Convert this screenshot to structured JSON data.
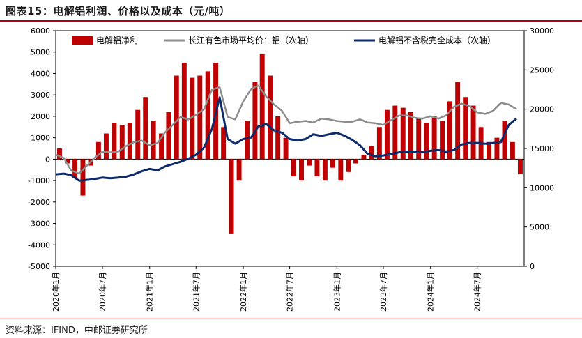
{
  "header": {
    "title": "图表15：电解铝利润、价格以及成本（元/吨）"
  },
  "footer": {
    "source": "资料来源：IFIND，中邮证券研究所"
  },
  "colors": {
    "profit": "#c00000",
    "price": "#8c8c8c",
    "cost": "#0d2a6b",
    "accent": "#b40000"
  },
  "chart_data": {
    "type": "bar",
    "title": "电解铝利润、价格以及成本（元/吨）",
    "legend": {
      "placement": "top",
      "items": [
        "电解铝净利",
        "长江有色市场平均价：铝（次轴）",
        "电解铝不含税完全成本（次轴）"
      ]
    },
    "x_tick_labels": [
      "2020年1月",
      "2020年7月",
      "2021年1月",
      "2021年7月",
      "2022年1月",
      "2022年7月",
      "2023年1月",
      "2023年7月",
      "2024年1月",
      "2024年7月"
    ],
    "left_axis": {
      "min": -5000,
      "max": 6000,
      "step": 1000,
      "ticks": [
        "6000",
        "5000",
        "4000",
        "3000",
        "2000",
        "1000",
        "0",
        "-1000",
        "-2000",
        "-3000",
        "-4000",
        "-5000"
      ]
    },
    "right_axis": {
      "min": 0,
      "max": 30000,
      "step": 5000,
      "ticks": [
        "30000",
        "25000",
        "20000",
        "15000",
        "10000",
        "5000",
        "0"
      ]
    },
    "series": [
      {
        "name": "电解铝净利",
        "type": "bar",
        "axis": "left",
        "points": [
          [
            "2020-01",
            500
          ],
          [
            "2020-02",
            -200
          ],
          [
            "2020-03",
            -900
          ],
          [
            "2020-04",
            -1700
          ],
          [
            "2020-05",
            -300
          ],
          [
            "2020-06",
            800
          ],
          [
            "2020-07",
            1200
          ],
          [
            "2020-08",
            1700
          ],
          [
            "2020-09",
            1600
          ],
          [
            "2020-10",
            1700
          ],
          [
            "2020-11",
            2300
          ],
          [
            "2020-12",
            2900
          ],
          [
            "2021-01",
            1800
          ],
          [
            "2021-02",
            1200
          ],
          [
            "2021-03",
            2200
          ],
          [
            "2021-04",
            3900
          ],
          [
            "2021-05",
            4500
          ],
          [
            "2021-06",
            3800
          ],
          [
            "2021-07",
            3900
          ],
          [
            "2021-08",
            4100
          ],
          [
            "2021-09",
            4500
          ],
          [
            "2021-10",
            1500
          ],
          [
            "2021-11",
            -3500
          ],
          [
            "2021-12",
            -1000
          ],
          [
            "2022-01",
            1800
          ],
          [
            "2022-02",
            3600
          ],
          [
            "2022-03",
            4900
          ],
          [
            "2022-04",
            3900
          ],
          [
            "2022-05",
            2000
          ],
          [
            "2022-06",
            1000
          ],
          [
            "2022-07",
            -800
          ],
          [
            "2022-08",
            -1000
          ],
          [
            "2022-09",
            -300
          ],
          [
            "2022-10",
            -800
          ],
          [
            "2022-11",
            -1000
          ],
          [
            "2022-12",
            -400
          ],
          [
            "2023-01",
            -1000
          ],
          [
            "2023-02",
            -600
          ],
          [
            "2023-03",
            -200
          ],
          [
            "2023-04",
            200
          ],
          [
            "2023-05",
            600
          ],
          [
            "2023-06",
            1500
          ],
          [
            "2023-07",
            2300
          ],
          [
            "2023-08",
            2500
          ],
          [
            "2023-09",
            2400
          ],
          [
            "2023-10",
            2200
          ],
          [
            "2023-11",
            1900
          ],
          [
            "2023-12",
            1700
          ],
          [
            "2024-01",
            2000
          ],
          [
            "2024-02",
            1800
          ],
          [
            "2024-03",
            2700
          ],
          [
            "2024-04",
            3600
          ],
          [
            "2024-05",
            2900
          ],
          [
            "2024-06",
            2500
          ],
          [
            "2024-07",
            1500
          ],
          [
            "2024-08",
            800
          ],
          [
            "2024-09",
            1000
          ],
          [
            "2024-10",
            1800
          ],
          [
            "2024-11",
            800
          ],
          [
            "2024-12",
            -700
          ]
        ]
      },
      {
        "name": "长江有色市场平均价：铝（次轴）",
        "type": "line",
        "axis": "right",
        "points": [
          [
            "2020-01",
            14200
          ],
          [
            "2020-02",
            13800
          ],
          [
            "2020-03",
            12200
          ],
          [
            "2020-04",
            11800
          ],
          [
            "2020-05",
            12800
          ],
          [
            "2020-06",
            13800
          ],
          [
            "2020-07",
            14600
          ],
          [
            "2020-08",
            14500
          ],
          [
            "2020-09",
            14600
          ],
          [
            "2020-10",
            15300
          ],
          [
            "2020-11",
            15800
          ],
          [
            "2020-12",
            16000
          ],
          [
            "2021-01",
            15400
          ],
          [
            "2021-02",
            15700
          ],
          [
            "2021-03",
            17000
          ],
          [
            "2021-04",
            18000
          ],
          [
            "2021-05",
            19000
          ],
          [
            "2021-06",
            18700
          ],
          [
            "2021-07",
            19300
          ],
          [
            "2021-08",
            20000
          ],
          [
            "2021-09",
            22500
          ],
          [
            "2021-10",
            22800
          ],
          [
            "2021-11",
            19000
          ],
          [
            "2021-12",
            18700
          ],
          [
            "2022-01",
            21000
          ],
          [
            "2022-02",
            22600
          ],
          [
            "2022-03",
            23000
          ],
          [
            "2022-04",
            21600
          ],
          [
            "2022-05",
            20600
          ],
          [
            "2022-06",
            19800
          ],
          [
            "2022-07",
            18200
          ],
          [
            "2022-08",
            18400
          ],
          [
            "2022-09",
            18500
          ],
          [
            "2022-10",
            18300
          ],
          [
            "2022-11",
            18800
          ],
          [
            "2022-12",
            18700
          ],
          [
            "2023-01",
            18500
          ],
          [
            "2023-02",
            18400
          ],
          [
            "2023-03",
            18400
          ],
          [
            "2023-04",
            18700
          ],
          [
            "2023-05",
            18300
          ],
          [
            "2023-06",
            18200
          ],
          [
            "2023-07",
            18000
          ],
          [
            "2023-08",
            18600
          ],
          [
            "2023-09",
            19200
          ],
          [
            "2023-10",
            19200
          ],
          [
            "2023-11",
            18900
          ],
          [
            "2023-12",
            18800
          ],
          [
            "2024-01",
            19100
          ],
          [
            "2024-02",
            18800
          ],
          [
            "2024-03",
            19200
          ],
          [
            "2024-04",
            20300
          ],
          [
            "2024-05",
            20700
          ],
          [
            "2024-06",
            20400
          ],
          [
            "2024-07",
            19600
          ],
          [
            "2024-08",
            19400
          ],
          [
            "2024-09",
            19800
          ],
          [
            "2024-10",
            20800
          ],
          [
            "2024-11",
            20600
          ],
          [
            "2024-12",
            20000
          ]
        ]
      },
      {
        "name": "电解铝不含税完全成本（次轴）",
        "type": "line",
        "axis": "right",
        "points": [
          [
            "2020-01",
            11700
          ],
          [
            "2020-02",
            11800
          ],
          [
            "2020-03",
            11600
          ],
          [
            "2020-04",
            10900
          ],
          [
            "2020-05",
            11000
          ],
          [
            "2020-06",
            11100
          ],
          [
            "2020-07",
            11300
          ],
          [
            "2020-08",
            11200
          ],
          [
            "2020-09",
            11300
          ],
          [
            "2020-10",
            11400
          ],
          [
            "2020-11",
            11700
          ],
          [
            "2020-12",
            12100
          ],
          [
            "2021-01",
            12400
          ],
          [
            "2021-02",
            12200
          ],
          [
            "2021-03",
            12700
          ],
          [
            "2021-04",
            13000
          ],
          [
            "2021-05",
            13300
          ],
          [
            "2021-06",
            13700
          ],
          [
            "2021-07",
            14200
          ],
          [
            "2021-08",
            15100
          ],
          [
            "2021-09",
            17500
          ],
          [
            "2021-10",
            21500
          ],
          [
            "2021-11",
            16200
          ],
          [
            "2021-12",
            15600
          ],
          [
            "2022-01",
            16200
          ],
          [
            "2022-02",
            16400
          ],
          [
            "2022-03",
            17800
          ],
          [
            "2022-04",
            18100
          ],
          [
            "2022-05",
            17300
          ],
          [
            "2022-06",
            17000
          ],
          [
            "2022-07",
            16200
          ],
          [
            "2022-08",
            16000
          ],
          [
            "2022-09",
            16200
          ],
          [
            "2022-10",
            16800
          ],
          [
            "2022-11",
            16600
          ],
          [
            "2022-12",
            16800
          ],
          [
            "2023-01",
            17000
          ],
          [
            "2023-02",
            16600
          ],
          [
            "2023-03",
            16100
          ],
          [
            "2023-04",
            15400
          ],
          [
            "2023-05",
            14300
          ],
          [
            "2023-06",
            14000
          ],
          [
            "2023-07",
            14100
          ],
          [
            "2023-08",
            14300
          ],
          [
            "2023-09",
            14500
          ],
          [
            "2023-10",
            14600
          ],
          [
            "2023-11",
            14600
          ],
          [
            "2023-12",
            14500
          ],
          [
            "2024-01",
            14700
          ],
          [
            "2024-02",
            14800
          ],
          [
            "2024-03",
            14600
          ],
          [
            "2024-04",
            14800
          ],
          [
            "2024-05",
            15500
          ],
          [
            "2024-06",
            15700
          ],
          [
            "2024-07",
            15700
          ],
          [
            "2024-08",
            15600
          ],
          [
            "2024-09",
            15700
          ],
          [
            "2024-10",
            15800
          ],
          [
            "2024-11",
            18000
          ],
          [
            "2024-12",
            18800
          ]
        ]
      }
    ]
  }
}
